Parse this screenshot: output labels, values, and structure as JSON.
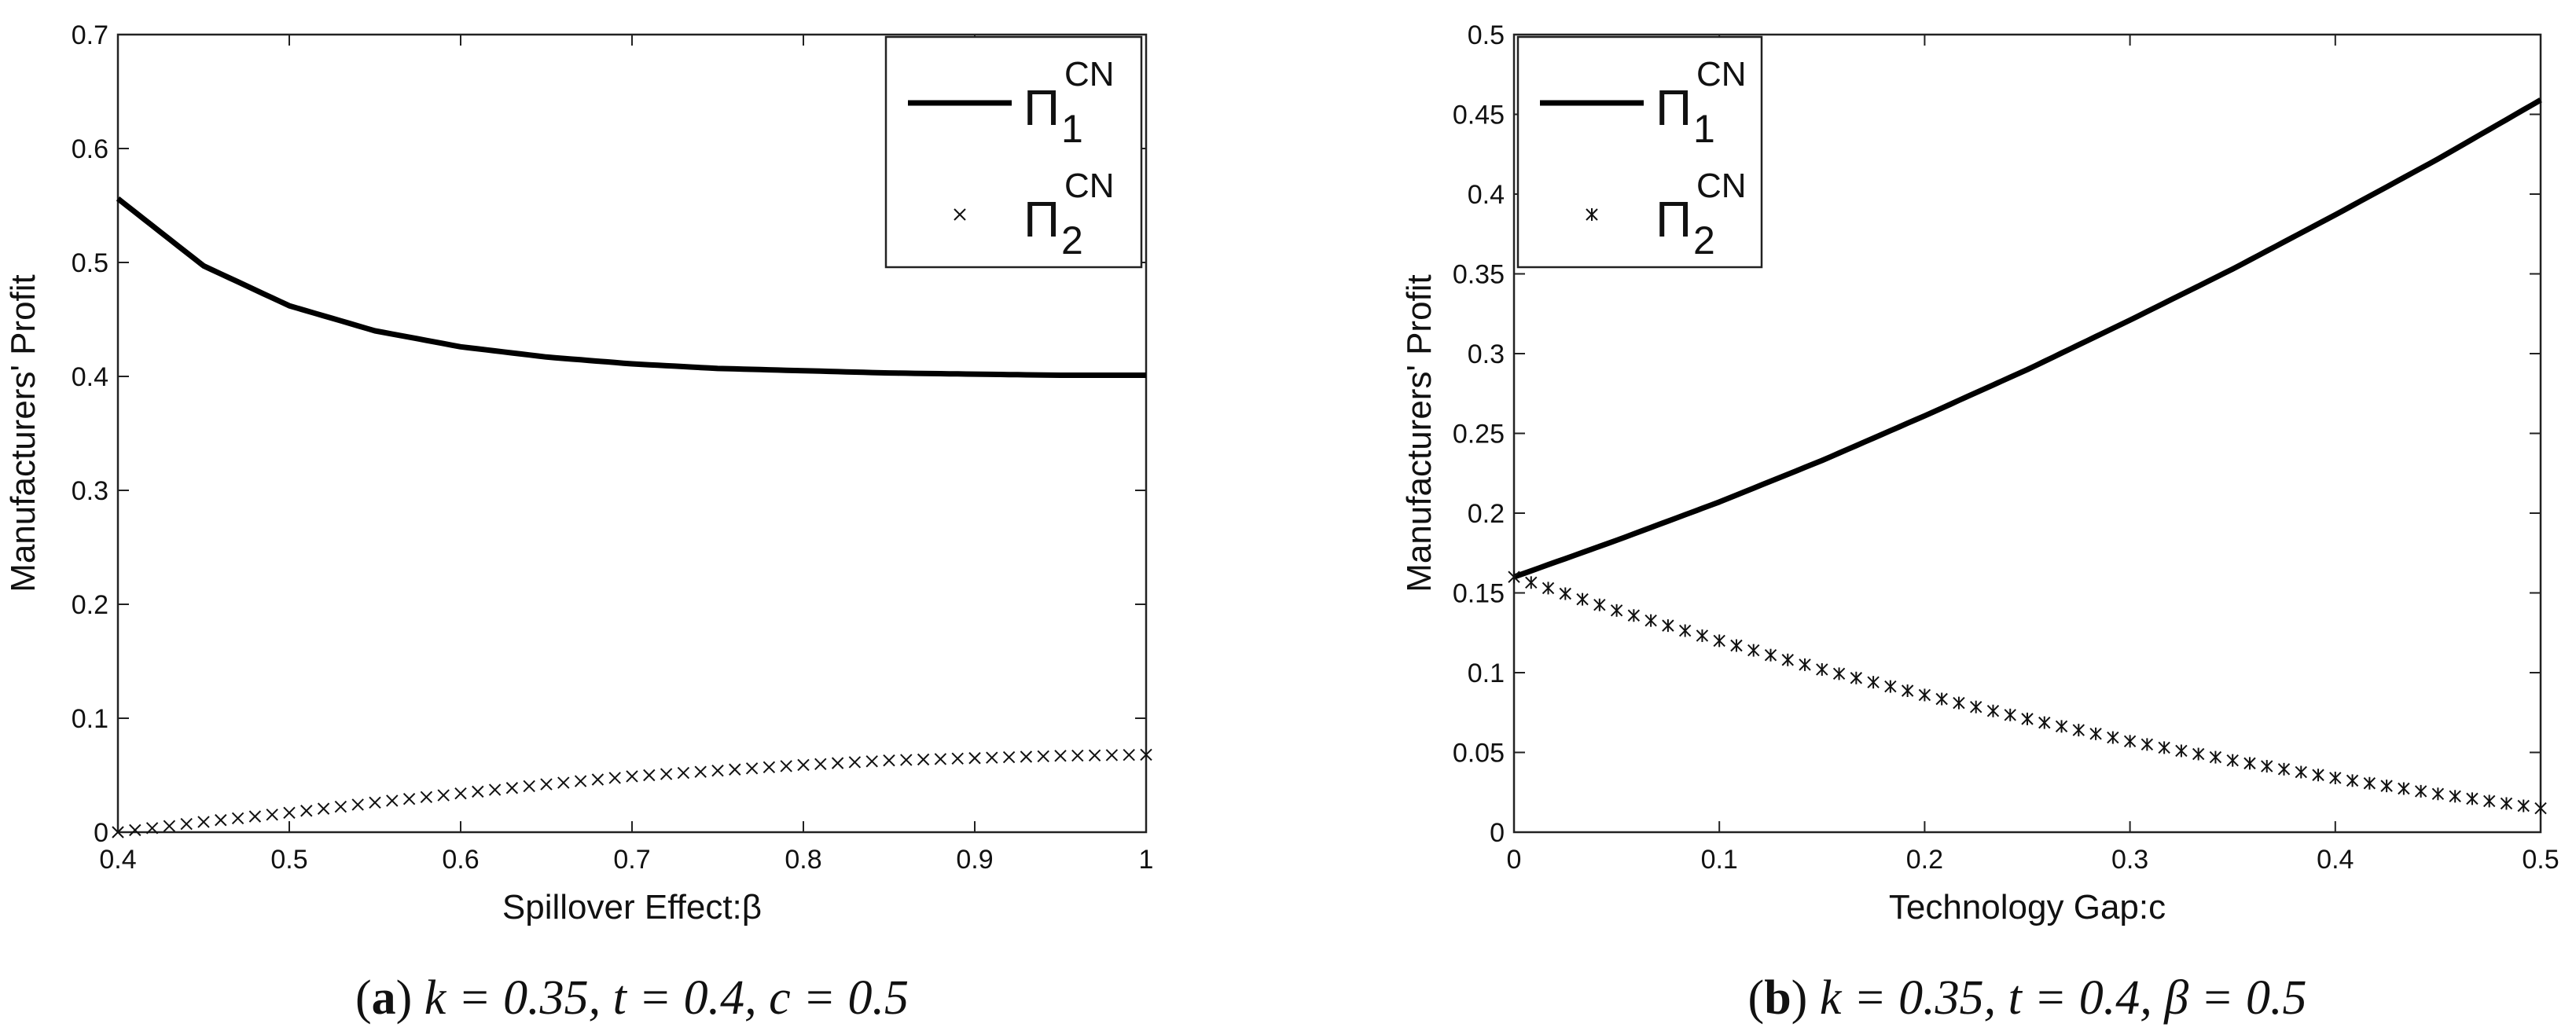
{
  "chart_data": [
    {
      "type": "line",
      "xlabel": "Spillover Effect:β",
      "ylabel": "Manufacturers' Profit",
      "xlim": [
        0.4,
        1
      ],
      "ylim": [
        0,
        0.7
      ],
      "xticks": [
        "0.4",
        "0.5",
        "0.6",
        "0.7",
        "0.8",
        "0.9",
        "1"
      ],
      "yticks": [
        "0",
        "0.1",
        "0.2",
        "0.3",
        "0.4",
        "0.5",
        "0.6",
        "0.7"
      ],
      "grid": false,
      "legend_position": "top-right",
      "caption": {
        "letter": "a",
        "text": "k = 0.35, t = 0.4, c = 0.5"
      },
      "series": [
        {
          "name": "Π₁ᶜᴺ",
          "legend": {
            "base": "Π",
            "sub": "1",
            "sup": "CN"
          },
          "style": "solid",
          "x": [
            0.4,
            0.45,
            0.5,
            0.55,
            0.6,
            0.65,
            0.7,
            0.75,
            0.8,
            0.85,
            0.9,
            0.95,
            1.0
          ],
          "values": [
            0.556,
            0.497,
            0.462,
            0.44,
            0.426,
            0.417,
            0.411,
            0.407,
            0.405,
            0.403,
            0.402,
            0.401,
            0.401
          ]
        },
        {
          "name": "Π₂ᶜᴺ",
          "legend": {
            "base": "Π",
            "sub": "2",
            "sup": "CN"
          },
          "style": "markers",
          "x": [
            0.4,
            0.45,
            0.5,
            0.55,
            0.6,
            0.65,
            0.7,
            0.75,
            0.8,
            0.85,
            0.9,
            0.95,
            1.0
          ],
          "values": [
            0.0,
            0.009,
            0.017,
            0.026,
            0.034,
            0.042,
            0.049,
            0.054,
            0.059,
            0.063,
            0.065,
            0.067,
            0.068
          ]
        }
      ]
    },
    {
      "type": "line",
      "xlabel": "Technology Gap:c",
      "ylabel": "Manufacturers' Profit",
      "xlim": [
        0,
        0.5
      ],
      "ylim": [
        0,
        0.5
      ],
      "xticks": [
        "0",
        "0.1",
        "0.2",
        "0.3",
        "0.4",
        "0.5"
      ],
      "yticks": [
        "0",
        "0.05",
        "0.1",
        "0.15",
        "0.2",
        "0.25",
        "0.3",
        "0.35",
        "0.4",
        "0.45",
        "0.5"
      ],
      "grid": false,
      "legend_position": "top-left",
      "caption": {
        "letter": "b",
        "text": "k = 0.35, t = 0.4, β = 0.5"
      },
      "series": [
        {
          "name": "Π₁ᶜᴺ",
          "legend": {
            "base": "Π",
            "sub": "1",
            "sup": "CN"
          },
          "style": "solid",
          "x": [
            0,
            0.05,
            0.1,
            0.15,
            0.2,
            0.25,
            0.3,
            0.35,
            0.4,
            0.45,
            0.5
          ],
          "values": [
            0.16,
            0.183,
            0.207,
            0.233,
            0.261,
            0.29,
            0.321,
            0.353,
            0.387,
            0.422,
            0.459
          ]
        },
        {
          "name": "Π₂ᶜᴺ",
          "legend": {
            "base": "Π",
            "sub": "2",
            "sup": "CN"
          },
          "style": "markers",
          "x": [
            0,
            0.05,
            0.1,
            0.15,
            0.2,
            0.25,
            0.3,
            0.35,
            0.4,
            0.45,
            0.5
          ],
          "values": [
            0.16,
            0.139,
            0.12,
            0.102,
            0.086,
            0.071,
            0.057,
            0.045,
            0.034,
            0.024,
            0.015
          ]
        }
      ]
    }
  ]
}
